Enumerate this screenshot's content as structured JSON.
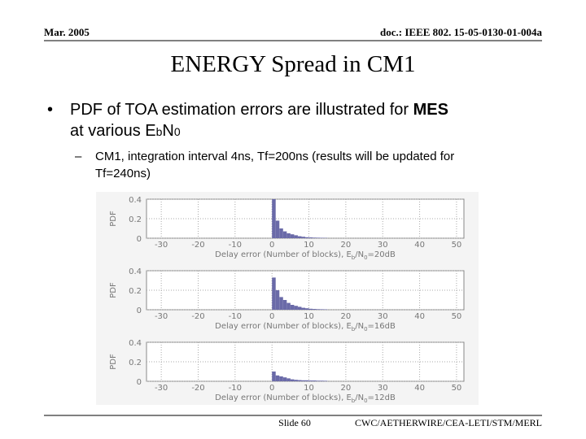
{
  "header": {
    "date": "Mar. 2005",
    "doc": "doc.: IEEE 802. 15-05-0130-01-004a"
  },
  "title": "ENERGY Spread in CM1",
  "bullet": {
    "text1": "PDF of TOA estimation errors are illustrated for ",
    "bold": "MES",
    "text2": "at various ",
    "e": "E",
    "b": "b",
    "n": "N",
    "zero": "0"
  },
  "sub_bullet": {
    "line1": "CM1, integration interval 4ns, Tf=200ns (results will be updated for",
    "line2": "Tf=240ns)"
  },
  "footer": {
    "slide": "Slide 60",
    "org": "CWC/AETHERWIRE/CEA-LETI/STM/MERL"
  },
  "chart_data": [
    {
      "type": "histogram",
      "ylabel": "PDF",
      "xlabel_parts": [
        "Delay error (Number of blocks), E",
        "b",
        "/N",
        "0",
        "=20dB"
      ],
      "bins": [
        0,
        1,
        2,
        3,
        4,
        5,
        6,
        7,
        8,
        9,
        10,
        11,
        12,
        13,
        14,
        15
      ],
      "counts": [
        0.4,
        0.18,
        0.1,
        0.07,
        0.05,
        0.04,
        0.03,
        0.02,
        0.015,
        0.01,
        0.008,
        0.006,
        0.005,
        0.004,
        0.003
      ],
      "color": "#6a6aa8",
      "xlim": [
        -34,
        52
      ],
      "xticks": [
        -30,
        -20,
        -10,
        0,
        10,
        20,
        30,
        40,
        50
      ],
      "ylim": [
        0,
        0.4
      ],
      "yticks": [
        0,
        0.2,
        0.4
      ],
      "grid": true
    },
    {
      "type": "histogram",
      "ylabel": "PDF",
      "xlabel_parts": [
        "Delay error (Number of blocks), E",
        "b",
        "/N",
        "0",
        "=16dB"
      ],
      "bins": [
        0,
        1,
        2,
        3,
        4,
        5,
        6,
        7,
        8,
        9,
        10,
        11,
        12,
        13,
        14,
        15
      ],
      "counts": [
        0.33,
        0.2,
        0.13,
        0.1,
        0.07,
        0.05,
        0.04,
        0.03,
        0.02,
        0.015,
        0.01,
        0.008,
        0.006,
        0.005,
        0.004
      ],
      "color": "#6a6aa8",
      "xlim": [
        -34,
        52
      ],
      "xticks": [
        -30,
        -20,
        -10,
        0,
        10,
        20,
        30,
        40,
        50
      ],
      "ylim": [
        0,
        0.4
      ],
      "yticks": [
        0,
        0.2,
        0.4
      ],
      "grid": true
    },
    {
      "type": "histogram",
      "ylabel": "PDF",
      "xlabel_parts": [
        "Delay error (Number of blocks), E",
        "b",
        "/N",
        "0",
        "=12dB"
      ],
      "bins": [
        0,
        1,
        2,
        3,
        4,
        5,
        6,
        7,
        8,
        9,
        10,
        11,
        12,
        13,
        14,
        15
      ],
      "counts": [
        0.1,
        0.06,
        0.05,
        0.04,
        0.03,
        0.02,
        0.015,
        0.012,
        0.01,
        0.01,
        0.008,
        0.008,
        0.006,
        0.006,
        0.005
      ],
      "color": "#6a6aa8",
      "xlim": [
        -34,
        52
      ],
      "xticks": [
        -30,
        -20,
        -10,
        0,
        10,
        20,
        30,
        40,
        50
      ],
      "ylim": [
        0,
        0.4
      ],
      "yticks": [
        0,
        0.2,
        0.4
      ],
      "grid": true
    }
  ]
}
